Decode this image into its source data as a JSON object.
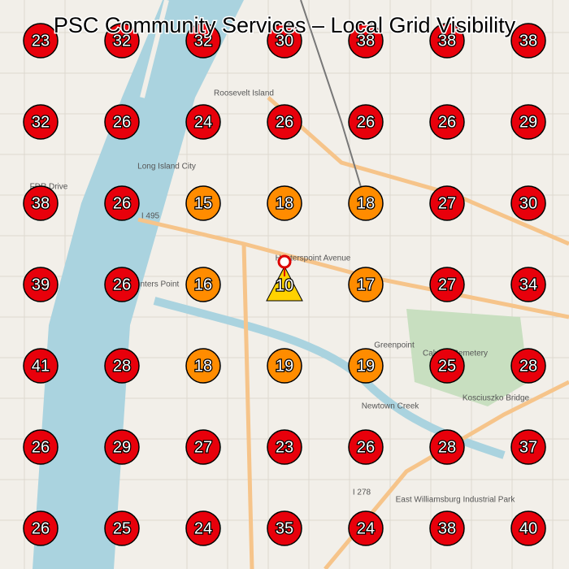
{
  "title": "PSC Community Services – Local Grid Visibility",
  "grid": {
    "rows": [
      [
        {
          "value": 23,
          "color": "#e8000b"
        },
        {
          "value": 32,
          "color": "#e8000b"
        },
        {
          "value": 32,
          "color": "#e8000b"
        },
        {
          "value": 30,
          "color": "#e8000b"
        },
        {
          "value": 38,
          "color": "#e8000b"
        },
        {
          "value": 38,
          "color": "#e8000b"
        },
        {
          "value": 38,
          "color": "#e8000b"
        }
      ],
      [
        {
          "value": 32,
          "color": "#e8000b"
        },
        {
          "value": 26,
          "color": "#e8000b"
        },
        {
          "value": 24,
          "color": "#e8000b"
        },
        {
          "value": 26,
          "color": "#e8000b"
        },
        {
          "value": 26,
          "color": "#e8000b"
        },
        {
          "value": 26,
          "color": "#e8000b"
        },
        {
          "value": 29,
          "color": "#e8000b"
        }
      ],
      [
        {
          "value": 38,
          "color": "#e8000b"
        },
        {
          "value": 26,
          "color": "#e8000b"
        },
        {
          "value": 15,
          "color": "#ff8c00"
        },
        {
          "value": 18,
          "color": "#ff8c00"
        },
        {
          "value": 18,
          "color": "#ff8c00"
        },
        {
          "value": 27,
          "color": "#e8000b"
        },
        {
          "value": 30,
          "color": "#e8000b"
        }
      ],
      [
        {
          "value": 39,
          "color": "#e8000b"
        },
        {
          "value": 26,
          "color": "#e8000b"
        },
        {
          "value": 16,
          "color": "#ff8c00"
        },
        {
          "value": 10,
          "color": "#ffd200",
          "shape": "triangle"
        },
        {
          "value": 17,
          "color": "#ff8c00"
        },
        {
          "value": 27,
          "color": "#e8000b"
        },
        {
          "value": 34,
          "color": "#e8000b"
        }
      ],
      [
        {
          "value": 41,
          "color": "#e8000b"
        },
        {
          "value": 28,
          "color": "#e8000b"
        },
        {
          "value": 18,
          "color": "#ff8c00"
        },
        {
          "value": 19,
          "color": "#ff8c00"
        },
        {
          "value": 19,
          "color": "#ff8c00"
        },
        {
          "value": 25,
          "color": "#e8000b"
        },
        {
          "value": 28,
          "color": "#e8000b"
        }
      ],
      [
        {
          "value": 26,
          "color": "#e8000b"
        },
        {
          "value": 29,
          "color": "#e8000b"
        },
        {
          "value": 27,
          "color": "#e8000b"
        },
        {
          "value": 23,
          "color": "#e8000b"
        },
        {
          "value": 26,
          "color": "#e8000b"
        },
        {
          "value": 28,
          "color": "#e8000b"
        },
        {
          "value": 37,
          "color": "#e8000b"
        }
      ],
      [
        {
          "value": 26,
          "color": "#e8000b"
        },
        {
          "value": 25,
          "color": "#e8000b"
        },
        {
          "value": 24,
          "color": "#e8000b"
        },
        {
          "value": 35,
          "color": "#e8000b"
        },
        {
          "value": 24,
          "color": "#e8000b"
        },
        {
          "value": 38,
          "color": "#e8000b"
        },
        {
          "value": 40,
          "color": "#e8000b"
        }
      ]
    ]
  },
  "map_labels": [
    "Roosevelt Island",
    "Long Island City",
    "Hunters Point",
    "Greenpoint",
    "Kosciuszko Bridge",
    "East Williamsburg Industrial Park",
    "Newtown Creek",
    "Hunterspoint Avenue",
    "I 495",
    "I 278",
    "FDR Drive",
    "Calvary Cemetery"
  ]
}
